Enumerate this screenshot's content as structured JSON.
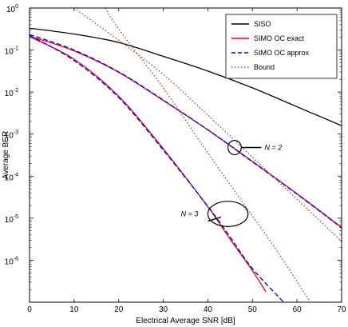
{
  "chart_data": {
    "type": "line",
    "title": "",
    "xlabel": "Electrical Average SNR [dB]",
    "ylabel": "Average BER",
    "xlim": [
      0,
      70
    ],
    "ylim_log10": [
      -7,
      0
    ],
    "y_scale": "log",
    "x_ticks": [
      0,
      10,
      20,
      30,
      40,
      50,
      60,
      70
    ],
    "y_ticks_log10": [
      -6,
      -5,
      -4,
      -3,
      -2,
      -1,
      0
    ],
    "y_tick_labels": [
      {
        "base": "10",
        "exp": "-6"
      },
      {
        "base": "10",
        "exp": "-5"
      },
      {
        "base": "10",
        "exp": "-4"
      },
      {
        "base": "10",
        "exp": "-3"
      },
      {
        "base": "10",
        "exp": "-2"
      },
      {
        "base": "10",
        "exp": "-1"
      },
      {
        "base": "10",
        "exp": "0"
      }
    ],
    "grid": false,
    "legend_position": "top-right",
    "legend": [
      {
        "label": "SISO",
        "color": "#000000",
        "style": "solid"
      },
      {
        "label": "SIMO OC exact",
        "color": "#e8000b",
        "style": "solid"
      },
      {
        "label": "SIMO OC approx",
        "color": "#0000ee",
        "style": "dashed"
      },
      {
        "label": "Bound",
        "color": "#a0522d",
        "style": "dotted"
      }
    ],
    "series": [
      {
        "name": "SISO",
        "color": "#000000",
        "style": "solid",
        "x": [
          0,
          10,
          20,
          30,
          40,
          50,
          60,
          70
        ],
        "log10_y": [
          -0.48,
          -0.62,
          -0.82,
          -1.15,
          -1.5,
          -1.9,
          -2.35,
          -2.8
        ]
      },
      {
        "name": "SIMO OC exact",
        "color": "#e8000b",
        "style": "solid",
        "x": [
          0,
          10,
          20,
          30,
          40,
          50,
          60,
          70
        ],
        "log10_y": [
          -0.67,
          -1.02,
          -1.53,
          -2.2,
          -2.9,
          -3.65,
          -4.42,
          -5.22
        ]
      },
      {
        "name": "SIMO OC approx",
        "color": "#0000ee",
        "style": "dashed",
        "x": [
          0,
          10,
          20,
          30,
          40,
          50,
          60,
          70
        ],
        "log10_y": [
          -0.63,
          -1,
          -1.52,
          -2.19,
          -2.9,
          -3.66,
          -4.43,
          -5.23
        ]
      },
      {
        "name": "SIMO OC exact",
        "color": "#e8000b",
        "style": "solid",
        "x": [
          0,
          10,
          20,
          30,
          40,
          45,
          50,
          53
        ],
        "log10_y": [
          -0.68,
          -1.22,
          -2.1,
          -3.35,
          -4.73,
          -5.5,
          -6.25,
          -6.75
        ]
      },
      {
        "name": "SIMO OC approx",
        "color": "#0000ee",
        "style": "dashed",
        "x": [
          0,
          10,
          20,
          30,
          40,
          45,
          50,
          57
        ],
        "log10_y": [
          -0.65,
          -1.25,
          -2.13,
          -3.38,
          -4.72,
          -5.45,
          -6.2,
          -7
        ]
      },
      {
        "name": "Bound",
        "color": "#a0522d",
        "style": "dotted",
        "x": [
          10,
          20,
          30,
          40,
          50,
          60,
          70
        ],
        "log10_y": [
          0,
          -0.77,
          -1.58,
          -2.55,
          -3.55,
          -4.55,
          -5.55
        ]
      },
      {
        "name": "Bound",
        "color": "#a0522d",
        "style": "dotted",
        "x": [
          17,
          20,
          30,
          40,
          50,
          55,
          63
        ],
        "log10_y": [
          0,
          -0.5,
          -1.9,
          -3.45,
          -4.95,
          -5.7,
          -7
        ]
      }
    ],
    "annotations": [
      {
        "text": "N = 2",
        "ellipse_center": [
          46,
          -3.32
        ],
        "ellipse_radius": [
          1.5,
          0.17
        ],
        "line_to": [
          52,
          -3.32
        ]
      },
      {
        "text": "N = 3",
        "ellipse_center": [
          44.5,
          -4.9
        ],
        "ellipse_radius": [
          4.5,
          0.3
        ],
        "line_to": [
          40,
          -5.07
        ]
      }
    ]
  }
}
